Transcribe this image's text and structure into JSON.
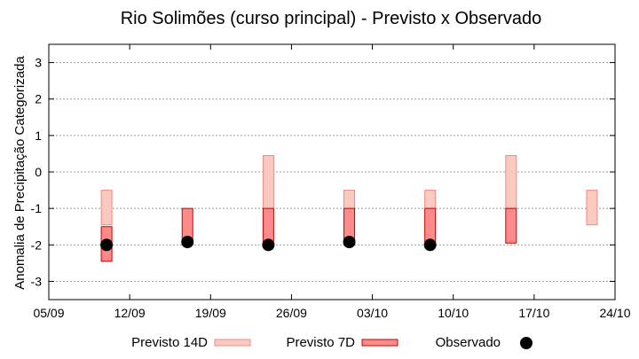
{
  "chart_data": {
    "type": "range-bar",
    "title": "Rio Solimões (curso principal) - Previsto x Observado",
    "xlabel": "",
    "ylabel": "Anomalia de Precipitação Categorizada",
    "ylim": [
      -3.5,
      3.5
    ],
    "yticks": [
      3,
      2,
      1,
      0,
      -1,
      -2,
      -3
    ],
    "x_range": [
      "2024-09-05",
      "2024-10-24"
    ],
    "x_tick_labels": [
      "05/09",
      "12/09",
      "19/09",
      "26/09",
      "03/10",
      "10/10",
      "17/10",
      "24/10"
    ],
    "grid": "horizontal dotted",
    "legend_position": "bottom",
    "legend": {
      "forecast_14d": "Previsto 14D",
      "forecast_7d": "Previsto 7D",
      "observed": "Observado"
    },
    "colors": {
      "forecast_14d_fill": "#fcc9c0",
      "forecast_14d_edge": "#f08a80",
      "forecast_7d_fill": "#ff8a8a",
      "forecast_7d_edge": "#cc0000",
      "observed": "#000000",
      "grid": "#999999"
    },
    "series": [
      {
        "name": "Previsto 14D",
        "type": "range",
        "points": [
          {
            "date": "2024-09-10",
            "low": -1.45,
            "high": -0.5
          },
          {
            "date": "2024-09-24",
            "low": -1.0,
            "high": 0.45
          },
          {
            "date": "2024-10-01",
            "low": -1.0,
            "high": -0.5
          },
          {
            "date": "2024-10-08",
            "low": -1.0,
            "high": -0.5
          },
          {
            "date": "2024-10-15",
            "low": -1.0,
            "high": 0.45
          },
          {
            "date": "2024-10-22",
            "low": -1.45,
            "high": -0.5
          }
        ]
      },
      {
        "name": "Previsto 7D",
        "type": "range",
        "points": [
          {
            "date": "2024-09-10",
            "low": -2.45,
            "high": -1.5
          },
          {
            "date": "2024-09-17",
            "low": -2.0,
            "high": -1.0
          },
          {
            "date": "2024-09-24",
            "low": -2.0,
            "high": -1.0
          },
          {
            "date": "2024-10-01",
            "low": -2.0,
            "high": -1.0
          },
          {
            "date": "2024-10-08",
            "low": -2.0,
            "high": -1.0
          },
          {
            "date": "2024-10-15",
            "low": -1.95,
            "high": -1.0
          }
        ]
      },
      {
        "name": "Observado",
        "type": "scatter",
        "points": [
          {
            "date": "2024-09-10",
            "value": -2.0
          },
          {
            "date": "2024-09-17",
            "value": -1.92
          },
          {
            "date": "2024-09-24",
            "value": -2.0
          },
          {
            "date": "2024-10-01",
            "value": -1.92
          },
          {
            "date": "2024-10-08",
            "value": -2.0
          }
        ]
      }
    ]
  }
}
